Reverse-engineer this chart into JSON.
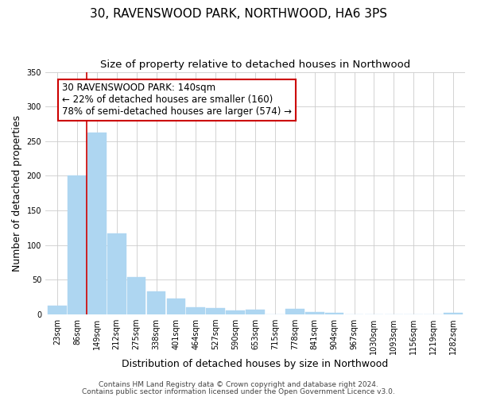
{
  "title": "30, RAVENSWOOD PARK, NORTHWOOD, HA6 3PS",
  "subtitle": "Size of property relative to detached houses in Northwood",
  "xlabel": "Distribution of detached houses by size in Northwood",
  "ylabel": "Number of detached properties",
  "bin_labels": [
    "23sqm",
    "86sqm",
    "149sqm",
    "212sqm",
    "275sqm",
    "338sqm",
    "401sqm",
    "464sqm",
    "527sqm",
    "590sqm",
    "653sqm",
    "715sqm",
    "778sqm",
    "841sqm",
    "904sqm",
    "967sqm",
    "1030sqm",
    "1093sqm",
    "1156sqm",
    "1219sqm",
    "1282sqm"
  ],
  "bar_values": [
    13,
    200,
    262,
    117,
    54,
    33,
    23,
    10,
    9,
    6,
    7,
    0,
    8,
    3,
    2,
    0,
    0,
    0,
    0,
    0,
    2
  ],
  "bar_color": "#aed6f1",
  "bar_edge_color": "#aed6f1",
  "ylim": [
    0,
    350
  ],
  "yticks": [
    0,
    50,
    100,
    150,
    200,
    250,
    300,
    350
  ],
  "property_bin_index": 2,
  "vline_color": "#cc0000",
  "vline_x": 1.5,
  "annotation_box_text": "30 RAVENSWOOD PARK: 140sqm\n← 22% of detached houses are smaller (160)\n78% of semi-detached houses are larger (574) →",
  "annotation_box_edge_color": "#cc0000",
  "footer_line1": "Contains HM Land Registry data © Crown copyright and database right 2024.",
  "footer_line2": "Contains public sector information licensed under the Open Government Licence v3.0.",
  "background_color": "#ffffff",
  "grid_color": "#cccccc",
  "title_fontsize": 11,
  "subtitle_fontsize": 9.5,
  "axis_label_fontsize": 9,
  "tick_fontsize": 7,
  "annotation_fontsize": 8.5,
  "footer_fontsize": 6.5
}
